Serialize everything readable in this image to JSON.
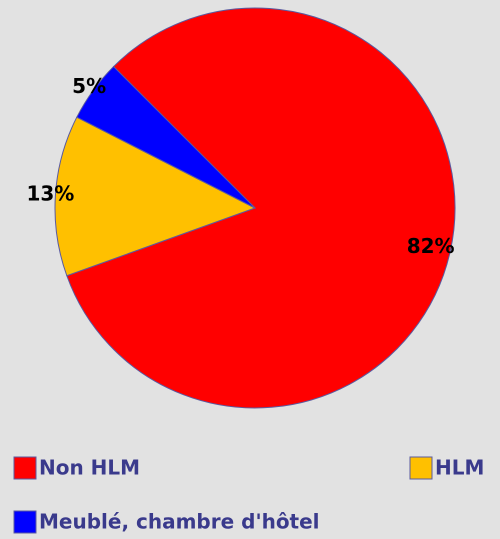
{
  "chart_data": {
    "type": "pie",
    "categories": [
      "Non HLM",
      "HLM",
      "Meublé, chambre d'hôtel"
    ],
    "values": [
      82,
      13,
      5
    ],
    "value_labels": [
      "82%",
      "13%",
      "5%"
    ],
    "colors": [
      "#ff0000",
      "#ffc000",
      "#0000ff"
    ]
  }
}
